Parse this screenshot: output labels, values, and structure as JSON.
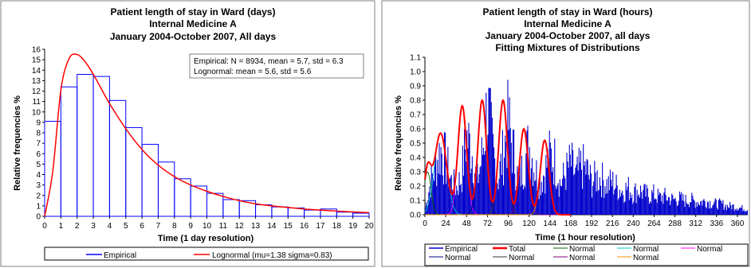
{
  "chart_data": [
    {
      "type": "bar",
      "title": "Patient length of stay in Ward (days)",
      "subtitle_lines": [
        "Internal Medicine A",
        "January 2004-October 2007, All days"
      ],
      "xlabel": "Time (1 day resolution)",
      "ylabel": "Relative frequencies %",
      "x_ticks": [
        "0",
        "1",
        "2",
        "3",
        "4",
        "5",
        "6",
        "7",
        "8",
        "9",
        "10",
        "11",
        "12",
        "13",
        "14",
        "15",
        "16",
        "17",
        "18",
        "19",
        "20"
      ],
      "y_ticks": [
        "0",
        "1",
        "2",
        "3",
        "4",
        "5",
        "6",
        "7",
        "8",
        "9",
        "10",
        "11",
        "12",
        "13",
        "14",
        "15",
        "16"
      ],
      "xlim": [
        0,
        20
      ],
      "ylim": [
        0,
        16
      ],
      "grid": false,
      "bin_edges": [
        0,
        1,
        2,
        3,
        4,
        5,
        6,
        7,
        8,
        9,
        10,
        11,
        12,
        13,
        14,
        15,
        16,
        17,
        18,
        19,
        20
      ],
      "series": [
        {
          "name": "Empirical",
          "color": "#0000ff",
          "style": "step-histogram",
          "values": [
            9.1,
            12.4,
            13.6,
            13.4,
            11.1,
            8.5,
            6.9,
            5.2,
            3.6,
            2.9,
            2.2,
            1.6,
            1.5,
            1.1,
            0.9,
            0.8,
            0.6,
            0.7,
            0.4,
            0.3
          ]
        },
        {
          "name": "Lognormal (mu=1.38 sigma=0.83)",
          "color": "#ff0000",
          "style": "curve",
          "x": [
            0,
            0.5,
            1,
            1.5,
            2,
            2.5,
            3,
            3.5,
            4,
            5,
            6,
            7,
            8,
            9,
            10,
            11,
            12,
            13,
            14,
            15,
            16,
            17,
            18,
            19,
            20
          ],
          "values": [
            0,
            4.3,
            12.1,
            15.1,
            15.5,
            14.8,
            13.6,
            12.2,
            10.8,
            8.4,
            6.4,
            4.9,
            3.8,
            3.0,
            2.4,
            1.9,
            1.5,
            1.2,
            1.0,
            0.85,
            0.7,
            0.6,
            0.5,
            0.42,
            0.35
          ]
        }
      ],
      "annotations": [
        "Empirical:  N  = 8934, mean = 5.7, std = 6.3",
        "Lognormal: mean = 5.6, std = 5.6"
      ],
      "legend": [
        "Empirical",
        "Lognormal (mu=1.38 sigma=0.83)"
      ],
      "legend_position": "bottom"
    },
    {
      "type": "bar",
      "title": "Patient length of stay in Ward (hours)",
      "subtitle_lines": [
        "Internal Medicine A",
        "January 2004-October 2007, all days",
        "Fitting Mixtures of Distributions"
      ],
      "xlabel": "Time (1 hour resolution)",
      "ylabel": "Relative frequencies %",
      "x_ticks": [
        "0",
        "24",
        "48",
        "72",
        "96",
        "120",
        "144",
        "168",
        "192",
        "216",
        "240",
        "264",
        "288",
        "312",
        "336",
        "360"
      ],
      "y_ticks": [
        "0.0",
        "0.1",
        "0.2",
        "0.3",
        "0.4",
        "0.5",
        "0.6",
        "0.7",
        "0.8",
        "0.9",
        "1.0",
        "1.1"
      ],
      "xlim": [
        0,
        372
      ],
      "ylim": [
        0,
        1.1
      ],
      "grid": false,
      "empirical_envelope": {
        "name": "Empirical",
        "color": "#0000cc",
        "x": [
          0,
          6,
          12,
          18,
          24,
          30,
          36,
          42,
          48,
          54,
          60,
          66,
          72,
          78,
          84,
          90,
          96,
          102,
          108,
          114,
          120,
          126,
          132,
          138,
          144,
          150,
          156,
          162,
          168,
          174,
          180,
          186,
          192,
          198,
          204,
          210,
          216,
          222,
          228,
          234,
          240,
          246,
          252,
          258,
          264,
          270,
          276,
          282,
          288,
          294,
          300,
          306,
          312,
          318,
          324,
          330,
          336,
          342,
          348,
          354,
          360,
          366,
          372
        ],
        "values": [
          0.05,
          0.28,
          0.45,
          0.6,
          0.5,
          0.32,
          0.25,
          0.35,
          0.72,
          0.6,
          0.3,
          0.55,
          1.02,
          0.62,
          0.32,
          0.55,
          0.85,
          0.58,
          0.3,
          0.48,
          0.65,
          0.45,
          0.3,
          0.4,
          0.55,
          0.5,
          0.28,
          0.38,
          0.48,
          0.35,
          0.45,
          0.42,
          0.3,
          0.35,
          0.33,
          0.28,
          0.3,
          0.25,
          0.22,
          0.25,
          0.2,
          0.23,
          0.2,
          0.18,
          0.19,
          0.16,
          0.17,
          0.15,
          0.14,
          0.15,
          0.13,
          0.14,
          0.12,
          0.12,
          0.13,
          0.11,
          0.1,
          0.1,
          0.08,
          0.08,
          0.07,
          0.06,
          0.05
        ]
      },
      "components": [
        {
          "name": "Normal",
          "color": "#006400",
          "mu": 3,
          "sigma": 4,
          "amp": 0.3
        },
        {
          "name": "Normal",
          "color": "#00cccc",
          "mu": 18,
          "sigma": 7,
          "amp": 0.57
        },
        {
          "name": "Normal",
          "color": "#ff00ff",
          "mu": 43,
          "sigma": 5,
          "amp": 0.76
        },
        {
          "name": "Normal",
          "color": "#000080",
          "mu": 66,
          "sigma": 5,
          "amp": 0.8
        },
        {
          "name": "Normal",
          "color": "#333333",
          "mu": 90,
          "sigma": 5,
          "amp": 0.8
        },
        {
          "name": "Normal",
          "color": "#800080",
          "mu": 114,
          "sigma": 5,
          "amp": 0.6
        },
        {
          "name": "Normal",
          "color": "#ff8c00",
          "mu": 138,
          "sigma": 5,
          "amp": 0.52
        }
      ],
      "total": {
        "name": "Total",
        "color": "#ff0000"
      },
      "legend": [
        "Empirical",
        "Total",
        "Normal",
        "Normal",
        "Normal",
        "Normal",
        "Normal",
        "Normal",
        "Normal"
      ],
      "legend_position": "bottom"
    }
  ]
}
